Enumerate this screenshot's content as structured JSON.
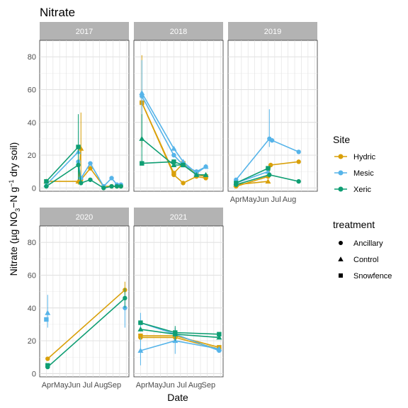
{
  "chart_data": {
    "type": "line",
    "title": "Nitrate",
    "xlabel": "Date",
    "ylabel": "Nitrate (µg NO3−N g−1 dry soil)",
    "ylim": [
      -2,
      90
    ],
    "yticks": [
      0,
      20,
      40,
      60,
      80
    ],
    "xticks": [
      "Apr",
      "May",
      "Jun",
      "Jul",
      "Aug",
      "Sep"
    ],
    "grid": true,
    "legend_site": {
      "title": "Site",
      "entries": [
        {
          "name": "Hydric",
          "color": "#D9A00A"
        },
        {
          "name": "Mesic",
          "color": "#56B4E9"
        },
        {
          "name": "Xeric",
          "color": "#0F9E73"
        }
      ]
    },
    "legend_treatment": {
      "title": "treatment",
      "entries": [
        {
          "name": "Ancillary",
          "shape": "circle"
        },
        {
          "name": "Control",
          "shape": "triangle"
        },
        {
          "name": "Snowfence",
          "shape": "square"
        }
      ]
    },
    "panels": [
      {
        "label": "2017",
        "series": [
          {
            "site": "Hydric",
            "treatment": "Control",
            "points": [
              {
                "x": 3.0,
                "y": 4
              },
              {
                "x": 5.4,
                "y": 4,
                "err": [
                  2,
                  6
                ]
              },
              {
                "x": 5.6,
                "y": 24,
                "err": [
                  4,
                  46
                ]
              }
            ]
          },
          {
            "site": "Hydric",
            "treatment": "Ancillary",
            "points": [
              {
                "x": 5.6,
                "y": 5
              },
              {
                "x": 6.3,
                "y": 12
              },
              {
                "x": 7.3,
                "y": 1
              },
              {
                "x": 7.9,
                "y": 1
              },
              {
                "x": 8.3,
                "y": 1
              },
              {
                "x": 8.6,
                "y": 1
              }
            ]
          },
          {
            "site": "Mesic",
            "treatment": "Control",
            "points": [
              {
                "x": 3.0,
                "y": 2
              },
              {
                "x": 5.4,
                "y": 22,
                "err": [
                  6,
                  35
                ]
              }
            ]
          },
          {
            "site": "Mesic",
            "treatment": "Ancillary",
            "points": [
              {
                "x": 5.4,
                "y": 16
              },
              {
                "x": 5.6,
                "y": 6
              },
              {
                "x": 6.3,
                "y": 15
              },
              {
                "x": 7.3,
                "y": 1
              },
              {
                "x": 7.9,
                "y": 6
              },
              {
                "x": 8.3,
                "y": 2
              },
              {
                "x": 8.6,
                "y": 2
              }
            ]
          },
          {
            "site": "Xeric",
            "treatment": "Snowfence",
            "points": [
              {
                "x": 3.0,
                "y": 4
              },
              {
                "x": 5.4,
                "y": 25,
                "err": [
                  5,
                  45
                ]
              }
            ]
          },
          {
            "site": "Xeric",
            "treatment": "Ancillary",
            "points": [
              {
                "x": 3.0,
                "y": 1
              },
              {
                "x": 5.4,
                "y": 14
              },
              {
                "x": 5.6,
                "y": 3
              },
              {
                "x": 6.3,
                "y": 5
              },
              {
                "x": 7.3,
                "y": 0
              },
              {
                "x": 7.9,
                "y": 1
              },
              {
                "x": 8.3,
                "y": 1
              },
              {
                "x": 8.6,
                "y": 1
              }
            ]
          }
        ]
      },
      {
        "label": "2018",
        "series": [
          {
            "site": "Hydric",
            "treatment": "Snowfence",
            "points": [
              {
                "x": 3.1,
                "y": 52,
                "err": [
                  25,
                  81
                ]
              },
              {
                "x": 5.5,
                "y": 9
              },
              {
                "x": 6.2,
                "y": 15
              },
              {
                "x": 7.2,
                "y": 8
              },
              {
                "x": 7.9,
                "y": 7
              }
            ]
          },
          {
            "site": "Hydric",
            "treatment": "Ancillary",
            "points": [
              {
                "x": 3.1,
                "y": 52
              },
              {
                "x": 5.5,
                "y": 8
              },
              {
                "x": 6.2,
                "y": 3
              },
              {
                "x": 7.2,
                "y": 7
              },
              {
                "x": 7.9,
                "y": 6
              }
            ]
          },
          {
            "site": "Mesic",
            "treatment": "Control",
            "points": [
              {
                "x": 3.1,
                "y": 58,
                "err": [
                  30,
                  78
                ]
              },
              {
                "x": 5.5,
                "y": 24
              },
              {
                "x": 6.2,
                "y": 16
              },
              {
                "x": 7.2,
                "y": 9
              },
              {
                "x": 7.9,
                "y": 13
              }
            ]
          },
          {
            "site": "Mesic",
            "treatment": "Ancillary",
            "points": [
              {
                "x": 3.1,
                "y": 56
              },
              {
                "x": 5.5,
                "y": 20
              },
              {
                "x": 6.2,
                "y": 14
              },
              {
                "x": 7.2,
                "y": 10
              },
              {
                "x": 7.9,
                "y": 13
              }
            ]
          },
          {
            "site": "Xeric",
            "treatment": "Control",
            "points": [
              {
                "x": 3.1,
                "y": 30,
                "err": [
                  15,
                  45
                ]
              },
              {
                "x": 5.5,
                "y": 14
              },
              {
                "x": 6.2,
                "y": 14
              },
              {
                "x": 7.2,
                "y": 8
              },
              {
                "x": 7.9,
                "y": 8
              }
            ]
          },
          {
            "site": "Xeric",
            "treatment": "Snowfence",
            "points": [
              {
                "x": 3.1,
                "y": 15
              },
              {
                "x": 5.5,
                "y": 16
              },
              {
                "x": 6.2,
                "y": 14
              }
            ]
          }
        ]
      },
      {
        "label": "2019",
        "series": [
          {
            "site": "Hydric",
            "treatment": "Control",
            "points": [
              {
                "x": 3.1,
                "y": 2
              },
              {
                "x": 5.5,
                "y": 4
              }
            ]
          },
          {
            "site": "Hydric",
            "treatment": "Ancillary",
            "points": [
              {
                "x": 3.1,
                "y": 1
              },
              {
                "x": 5.5,
                "y": 7
              },
              {
                "x": 5.7,
                "y": 14
              },
              {
                "x": 7.8,
                "y": 16
              }
            ]
          },
          {
            "site": "Mesic",
            "treatment": "Ancillary",
            "points": [
              {
                "x": 3.1,
                "y": 5
              },
              {
                "x": 5.6,
                "y": 30,
                "err": [
                  25,
                  48
                ]
              },
              {
                "x": 5.8,
                "y": 29
              },
              {
                "x": 7.8,
                "y": 22
              }
            ]
          },
          {
            "site": "Mesic",
            "treatment": "Control",
            "points": [
              {
                "x": 3.1,
                "y": 3
              },
              {
                "x": 5.5,
                "y": 10
              }
            ]
          },
          {
            "site": "Xeric",
            "treatment": "Snowfence",
            "points": [
              {
                "x": 3.1,
                "y": 3
              },
              {
                "x": 5.5,
                "y": 12
              }
            ]
          },
          {
            "site": "Xeric",
            "treatment": "Ancillary",
            "points": [
              {
                "x": 3.1,
                "y": 2
              },
              {
                "x": 5.6,
                "y": 8
              },
              {
                "x": 7.8,
                "y": 4
              }
            ]
          }
        ]
      },
      {
        "label": "2020",
        "series": [
          {
            "site": "Hydric",
            "treatment": "Ancillary",
            "points": [
              {
                "x": 3.1,
                "y": 9
              },
              {
                "x": 8.9,
                "y": 51,
                "err": [
                  48,
                  56
                ]
              }
            ]
          },
          {
            "site": "Mesic",
            "treatment": "Control",
            "points": [
              {
                "x": 3.1,
                "y": 37,
                "err": [
                  28,
                  48
                ]
              }
            ]
          },
          {
            "site": "Mesic",
            "treatment": "Snowfence",
            "points": [
              {
                "x": 3.0,
                "y": 33
              }
            ]
          },
          {
            "site": "Mesic",
            "treatment": "Ancillary",
            "points": [
              {
                "x": 8.9,
                "y": 40,
                "err": [
                  28,
                  44
                ]
              }
            ]
          },
          {
            "site": "Xeric",
            "treatment": "Ancillary",
            "points": [
              {
                "x": 3.1,
                "y": 4
              },
              {
                "x": 8.9,
                "y": 46,
                "err": [
                  40,
                  52
                ]
              }
            ]
          },
          {
            "site": "Xeric",
            "treatment": "Snowfence",
            "points": [
              {
                "x": 3.1,
                "y": 5
              }
            ]
          }
        ]
      },
      {
        "label": "2021",
        "series": [
          {
            "site": "Hydric",
            "treatment": "Snowfence",
            "points": [
              {
                "x": 3.0,
                "y": 23
              },
              {
                "x": 5.6,
                "y": 23
              },
              {
                "x": 8.9,
                "y": 16
              }
            ]
          },
          {
            "site": "Hydric",
            "treatment": "Ancillary",
            "points": [
              {
                "x": 3.0,
                "y": 22
              },
              {
                "x": 5.6,
                "y": 22
              },
              {
                "x": 8.9,
                "y": 15
              }
            ]
          },
          {
            "site": "Mesic",
            "treatment": "Control",
            "points": [
              {
                "x": 3.0,
                "y": 14,
                "err": [
                  5,
                  22
                ]
              },
              {
                "x": 5.6,
                "y": 20,
                "err": [
                  12,
                  28
                ]
              },
              {
                "x": 8.9,
                "y": 15
              }
            ]
          },
          {
            "site": "Mesic",
            "treatment": "Ancillary",
            "points": [
              {
                "x": 3.0,
                "y": 31,
                "err": [
                  27,
                  37
                ]
              },
              {
                "x": 5.6,
                "y": 24
              },
              {
                "x": 8.9,
                "y": 14
              }
            ]
          },
          {
            "site": "Xeric",
            "treatment": "Control",
            "points": [
              {
                "x": 3.0,
                "y": 27
              },
              {
                "x": 5.6,
                "y": 24,
                "err": [
                  20,
                  29
                ]
              },
              {
                "x": 8.9,
                "y": 22
              }
            ]
          },
          {
            "site": "Xeric",
            "treatment": "Snowfence",
            "points": [
              {
                "x": 3.0,
                "y": 31
              },
              {
                "x": 5.6,
                "y": 25
              },
              {
                "x": 8.9,
                "y": 24
              }
            ]
          }
        ]
      }
    ]
  }
}
